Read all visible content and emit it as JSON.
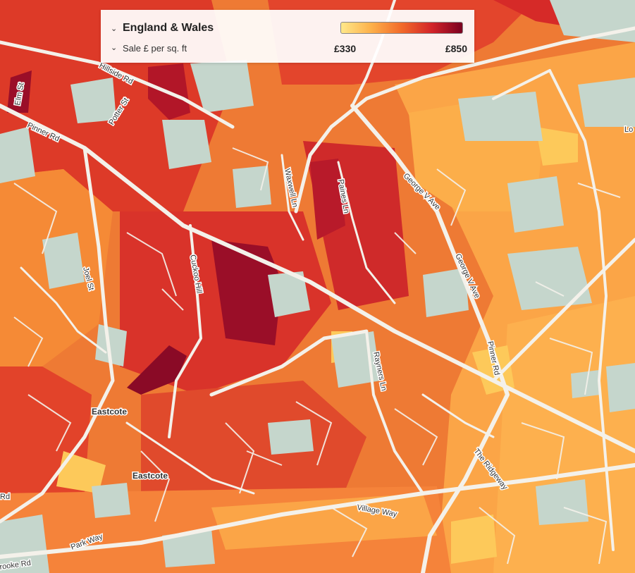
{
  "legend": {
    "region_label": "England & Wales",
    "metric_label": "Sale £ per sq. ft",
    "min_label": "£330",
    "max_label": "£850",
    "ramp_colors": [
      "#ffe88a",
      "#fdb04a",
      "#f26a2a",
      "#d2242a",
      "#7a0020"
    ],
    "region_dropdown_icon": "chevron-down-icon",
    "metric_dropdown_icon": "chevron-down-icon"
  },
  "map": {
    "street_labels": {
      "hillside_rd": "Hillside Rd",
      "pinner_rd_west": "Pinner Rd",
      "potter_st": "Potter St",
      "elm_st": "Elm St",
      "waxwell_ln": "Waxwell Ln",
      "paines_ln": "Paines Ln",
      "george_v_ave_north": "George V Ave",
      "george_v_ave_south": "George V Ave",
      "pinner_rd_east": "Pinner Rd",
      "love_ln": "Lo",
      "joel_st": "Joel St",
      "cuckoo_hill": "Cuckoo Hill",
      "rayners_ln": "Rayners Ln",
      "the_ridgeway": "The Ridgeway",
      "village_way": "Village Way",
      "park_way": "Park Way",
      "brooke_rd": "rooke Rd",
      "rd_edge": "Rd"
    },
    "place_labels": {
      "eastcote_north": "Eastcote",
      "eastcote_south": "Eastcote"
    },
    "colors": {
      "water_green": "#c5d6cc",
      "road": "#f4f1ea",
      "dark_red": "#8a0a26",
      "red": "#d8322a",
      "orange": "#f07a30",
      "light_orange": "#fca645",
      "yellow": "#fdc95a"
    }
  }
}
